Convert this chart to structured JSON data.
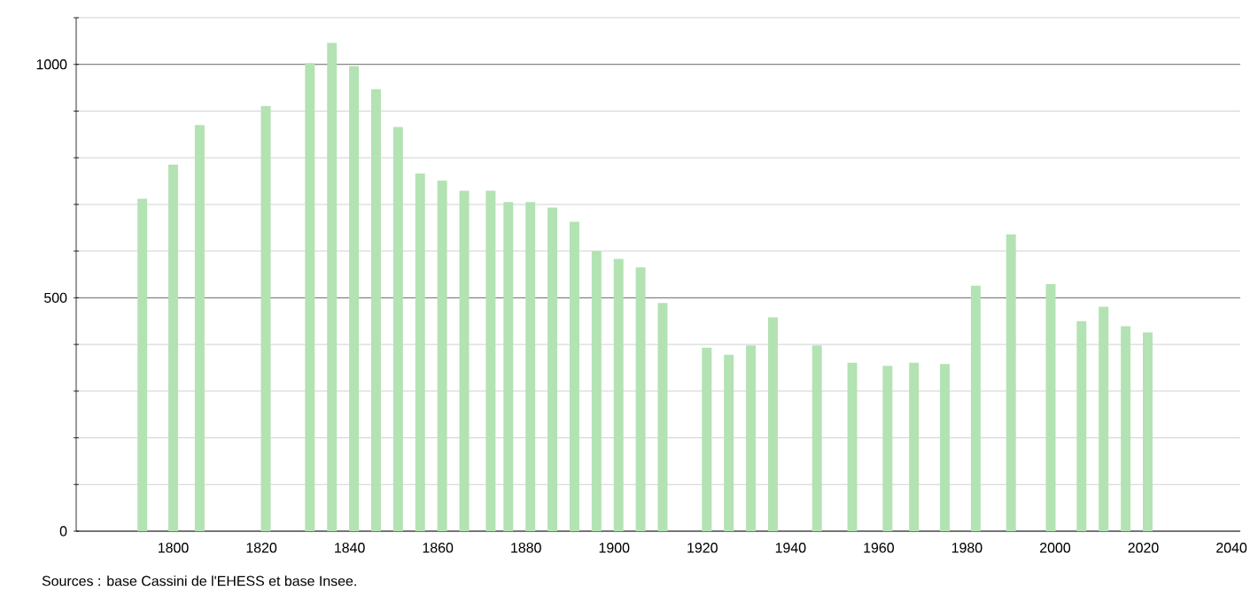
{
  "chart_data": {
    "type": "bar",
    "color": "#b3e2b3",
    "x": [
      1793,
      1800,
      1806,
      1821,
      1831,
      1836,
      1841,
      1846,
      1851,
      1856,
      1861,
      1866,
      1872,
      1876,
      1881,
      1886,
      1891,
      1896,
      1901,
      1906,
      1911,
      1921,
      1926,
      1931,
      1936,
      1946,
      1954,
      1962,
      1968,
      1975,
      1982,
      1990,
      1999,
      2006,
      2011,
      2016,
      2021
    ],
    "values": [
      712,
      785,
      870,
      911,
      1003,
      1046,
      996,
      947,
      866,
      766,
      751,
      729,
      729,
      705,
      705,
      693,
      663,
      600,
      583,
      565,
      489,
      393,
      378,
      398,
      458,
      398,
      361,
      354,
      361,
      358,
      526,
      636,
      529,
      450,
      481,
      439,
      426
    ],
    "xlim": [
      1778,
      2042
    ],
    "xticks": [
      1800,
      1820,
      1840,
      1860,
      1880,
      1900,
      1920,
      1940,
      1960,
      1980,
      2000,
      2020,
      2040
    ],
    "ylim": [
      0,
      1100
    ],
    "yticks": [
      0,
      {
        "value": 100,
        "label": null
      },
      {
        "value": 200,
        "label": null
      },
      {
        "value": 300,
        "label": null
      },
      {
        "value": 400,
        "label": null
      },
      500,
      {
        "value": 600,
        "label": null
      },
      {
        "value": 700,
        "label": null
      },
      {
        "value": 800,
        "label": null
      },
      {
        "value": 900,
        "label": null
      },
      1000,
      {
        "value": 1100,
        "label": null
      }
    ],
    "grid": "y",
    "annotations": [
      "Sources : base Cassini de l'EHESS et base Insee."
    ]
  }
}
